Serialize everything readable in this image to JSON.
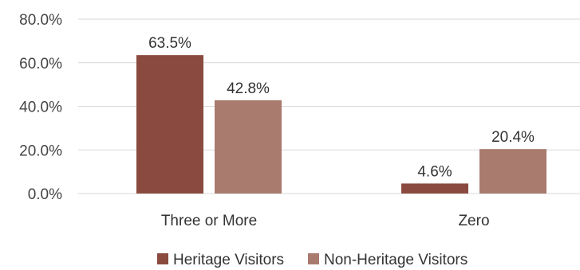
{
  "chart_data": {
    "type": "bar",
    "categories": [
      "Three or More",
      "Zero"
    ],
    "series": [
      {
        "name": "Heritage Visitors",
        "values": [
          63.5,
          4.6
        ],
        "color": "#8b4a3f"
      },
      {
        "name": "Non-Heritage Visitors",
        "values": [
          42.8,
          20.4
        ],
        "color": "#a97b6e"
      }
    ],
    "data_labels": [
      [
        "63.5%",
        "4.6%"
      ],
      [
        "42.8%",
        "20.4%"
      ]
    ],
    "ylim": [
      0,
      80
    ],
    "yticks": [
      0,
      20,
      40,
      60,
      80
    ],
    "ytick_labels": [
      "0.0%",
      "20.0%",
      "40.0%",
      "60.0%",
      "80.0%"
    ],
    "grid": true,
    "legend_position": "bottom"
  }
}
